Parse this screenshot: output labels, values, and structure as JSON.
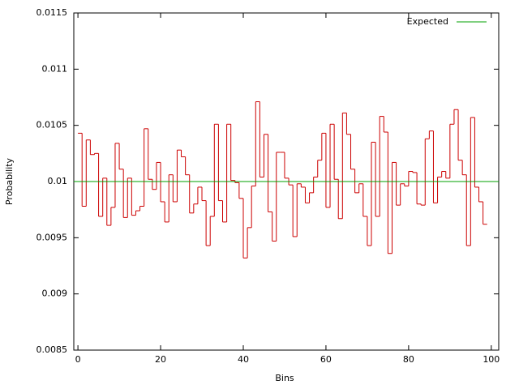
{
  "chart_data": {
    "type": "step",
    "xlabel": "Bins",
    "ylabel": "Probability",
    "xlim": [
      -1,
      101.8
    ],
    "ylim": [
      0.0085,
      0.0115
    ],
    "xticks": [
      0,
      20,
      40,
      60,
      80,
      100
    ],
    "yticks": [
      0.0085,
      0.009,
      0.0095,
      0.01,
      0.0105,
      0.011,
      0.0115
    ],
    "x": [
      0,
      1,
      2,
      3,
      4,
      5,
      6,
      7,
      8,
      9,
      10,
      11,
      12,
      13,
      14,
      15,
      16,
      17,
      18,
      19,
      20,
      21,
      22,
      23,
      24,
      25,
      26,
      27,
      28,
      29,
      30,
      31,
      32,
      33,
      34,
      35,
      36,
      37,
      38,
      39,
      40,
      41,
      42,
      43,
      44,
      45,
      46,
      47,
      48,
      49,
      50,
      51,
      52,
      53,
      54,
      55,
      56,
      57,
      58,
      59,
      60,
      61,
      62,
      63,
      64,
      65,
      66,
      67,
      68,
      69,
      70,
      71,
      72,
      73,
      74,
      75,
      76,
      77,
      78,
      79,
      80,
      81,
      82,
      83,
      84,
      85,
      86,
      87,
      88,
      89,
      90,
      91,
      92,
      93,
      94,
      95,
      96,
      97,
      98,
      99
    ],
    "series": [
      {
        "color": "#cc0000",
        "values": [
          0.01043,
          0.00978,
          0.01037,
          0.01024,
          0.01025,
          0.00969,
          0.01003,
          0.00961,
          0.00977,
          0.01034,
          0.01011,
          0.00968,
          0.01003,
          0.0097,
          0.00974,
          0.00978,
          0.01047,
          0.01002,
          0.00993,
          0.01017,
          0.00982,
          0.00964,
          0.01006,
          0.00982,
          0.01028,
          0.01022,
          0.01006,
          0.00972,
          0.0098,
          0.00995,
          0.00983,
          0.00943,
          0.00969,
          0.01051,
          0.00983,
          0.00964,
          0.01051,
          0.01001,
          0.00999,
          0.00985,
          0.00932,
          0.00959,
          0.00996,
          0.01071,
          0.01004,
          0.01042,
          0.00973,
          0.00947,
          0.01026,
          0.01026,
          0.01003,
          0.00997,
          0.00951,
          0.00998,
          0.00995,
          0.00981,
          0.0099,
          0.01004,
          0.01019,
          0.01043,
          0.00977,
          0.01051,
          0.01002,
          0.00967,
          0.01061,
          0.01042,
          0.01011,
          0.0099,
          0.00998,
          0.00969,
          0.00943,
          0.01035,
          0.00969,
          0.01058,
          0.01044,
          0.00936,
          0.01017,
          0.00979,
          0.00998,
          0.00996,
          0.01009,
          0.01008,
          0.0098,
          0.00979,
          0.01038,
          0.01045,
          0.00981,
          0.01004,
          0.01009,
          0.01003,
          0.01051,
          0.01064,
          0.01019,
          0.01006,
          0.00943,
          0.01057,
          0.00995,
          0.00982,
          0.00962,
          0.00962
        ]
      }
    ],
    "expected": {
      "name": "Expected",
      "color": "#00a000",
      "value": 0.01
    }
  }
}
